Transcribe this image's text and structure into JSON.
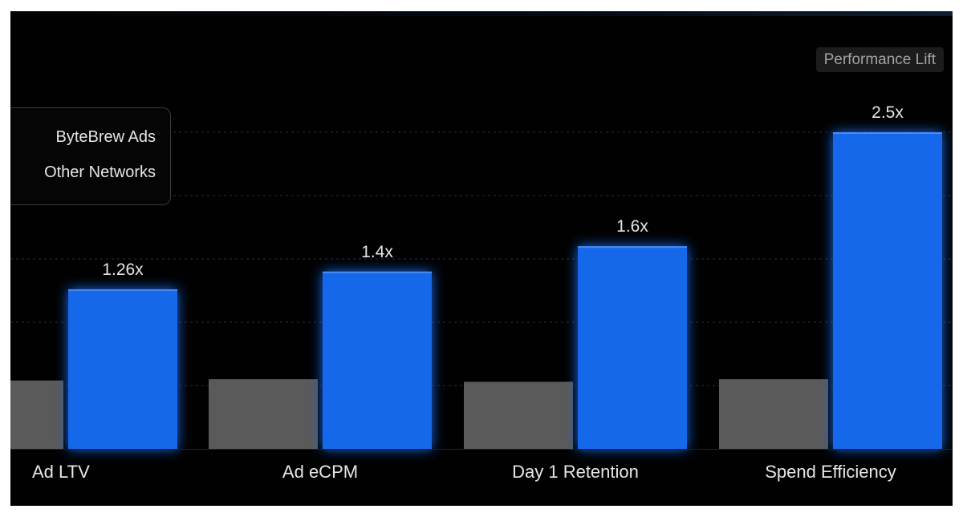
{
  "badge": "Performance Lift",
  "legend": {
    "primary": "ByteBrew Ads",
    "secondary": "Other Networks"
  },
  "colors": {
    "primary": "#1467ea",
    "secondary": "#5a5a5a",
    "background": "#010102",
    "grid": "#2f2f2f"
  },
  "chart_data": {
    "type": "bar",
    "categories": [
      "Ad LTV",
      "Ad eCPM",
      "Day 1 Retention",
      "Spend Efficiency"
    ],
    "series": [
      {
        "name": "ByteBrew Ads",
        "values": [
          1.26,
          1.4,
          1.6,
          2.5
        ]
      },
      {
        "name": "Other Networks",
        "values": [
          0.54,
          0.55,
          0.53,
          0.55
        ]
      }
    ],
    "data_labels": [
      "1.26x",
      "1.4x",
      "1.6x",
      "2.5x"
    ],
    "ylim": [
      0,
      2.6
    ],
    "grid": true,
    "legend_position": "top-left"
  }
}
